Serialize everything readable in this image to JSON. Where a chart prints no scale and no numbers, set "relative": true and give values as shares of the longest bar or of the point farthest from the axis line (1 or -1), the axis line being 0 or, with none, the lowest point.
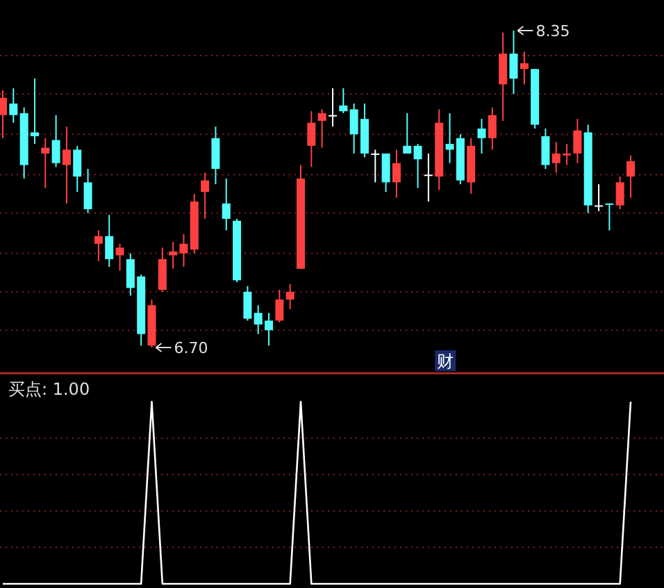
{
  "chart_data": [
    {
      "type": "candlestick",
      "categories": [
        null,
        null,
        null,
        null,
        null,
        null,
        null,
        null,
        null,
        null,
        null,
        null,
        null,
        null,
        null,
        null,
        null,
        null,
        null,
        null,
        null,
        null,
        null,
        null,
        null,
        null,
        null,
        null,
        null,
        null,
        null,
        null,
        null,
        null,
        null,
        null,
        null,
        null,
        null,
        null,
        null,
        null,
        null,
        null,
        null,
        null,
        null,
        null,
        null,
        null,
        null,
        null,
        null,
        null,
        null,
        null,
        null,
        null,
        null,
        null
      ],
      "ohlc": [
        [
          7.91,
          8.04,
          7.79,
          8.0
        ],
        [
          7.97,
          8.05,
          7.87,
          7.91
        ],
        [
          7.92,
          7.95,
          7.58,
          7.65
        ],
        [
          7.82,
          8.1,
          7.76,
          7.8
        ],
        [
          7.71,
          7.79,
          7.53,
          7.74
        ],
        [
          7.78,
          7.91,
          7.64,
          7.66
        ],
        [
          7.65,
          7.85,
          7.45,
          7.73
        ],
        [
          7.73,
          7.75,
          7.51,
          7.59
        ],
        [
          7.56,
          7.63,
          7.4,
          7.42
        ],
        [
          7.24,
          7.31,
          7.15,
          7.28
        ],
        [
          7.28,
          7.39,
          7.12,
          7.16
        ],
        [
          7.18,
          7.24,
          7.1,
          7.22
        ],
        [
          7.16,
          7.19,
          6.97,
          7.01
        ],
        [
          7.07,
          7.08,
          6.71,
          6.77
        ],
        [
          6.71,
          6.95,
          6.7,
          6.92
        ],
        [
          7.0,
          7.22,
          6.99,
          7.16
        ],
        [
          7.18,
          7.25,
          7.11,
          7.2
        ],
        [
          7.19,
          7.29,
          7.12,
          7.24
        ],
        [
          7.21,
          7.5,
          7.19,
          7.46
        ],
        [
          7.51,
          7.61,
          7.37,
          7.57
        ],
        [
          7.79,
          7.85,
          7.55,
          7.63
        ],
        [
          7.45,
          7.58,
          7.31,
          7.37
        ],
        [
          7.36,
          7.37,
          7.04,
          7.05
        ],
        [
          6.99,
          7.02,
          6.84,
          6.85
        ],
        [
          6.88,
          6.92,
          6.77,
          6.82
        ],
        [
          6.84,
          6.88,
          6.71,
          6.79
        ],
        [
          6.84,
          7.0,
          6.83,
          6.95
        ],
        [
          6.95,
          7.03,
          6.9,
          6.99
        ],
        [
          7.11,
          7.65,
          7.11,
          7.58
        ],
        [
          7.75,
          7.93,
          7.64,
          7.87
        ],
        [
          7.88,
          7.94,
          7.74,
          7.92
        ],
        [
          7.91,
          8.05,
          7.85,
          7.91
        ],
        [
          7.96,
          8.05,
          7.92,
          7.93
        ],
        [
          7.94,
          7.97,
          7.71,
          7.81
        ],
        [
          7.89,
          7.97,
          7.69,
          7.71
        ],
        [
          7.71,
          7.73,
          7.56,
          7.71
        ],
        [
          7.71,
          7.71,
          7.51,
          7.56
        ],
        [
          7.56,
          7.73,
          7.48,
          7.66
        ],
        [
          7.75,
          7.92,
          7.71,
          7.71
        ],
        [
          7.75,
          7.76,
          7.53,
          7.68
        ],
        [
          7.6,
          7.71,
          7.46,
          7.6
        ],
        [
          7.59,
          7.94,
          7.52,
          7.87
        ],
        [
          7.76,
          7.92,
          7.66,
          7.73
        ],
        [
          7.79,
          7.81,
          7.55,
          7.57
        ],
        [
          7.56,
          7.79,
          7.5,
          7.75
        ],
        [
          7.84,
          7.89,
          7.71,
          7.79
        ],
        [
          7.79,
          7.95,
          7.73,
          7.91
        ],
        [
          8.07,
          8.34,
          7.88,
          8.23
        ],
        [
          8.23,
          8.35,
          8.02,
          8.1
        ],
        [
          8.15,
          8.24,
          8.07,
          8.18
        ],
        [
          8.15,
          8.15,
          7.84,
          7.86
        ],
        [
          7.8,
          7.84,
          7.63,
          7.65
        ],
        [
          7.66,
          7.77,
          7.61,
          7.71
        ],
        [
          7.7,
          7.76,
          7.65,
          7.71
        ],
        [
          7.71,
          7.89,
          7.66,
          7.83
        ],
        [
          7.82,
          7.86,
          7.4,
          7.44
        ],
        [
          7.44,
          7.55,
          7.41,
          7.44
        ],
        [
          7.45,
          7.45,
          7.31,
          7.45
        ],
        [
          7.44,
          7.59,
          7.42,
          7.56
        ],
        [
          7.59,
          7.7,
          7.48,
          7.67
        ]
      ],
      "colors": [
        "#ff4040",
        "#54fcfc",
        "#54fcfc",
        "#54fcfc",
        "#ff4040",
        "#54fcfc",
        "#ff4040",
        "#54fcfc",
        "#54fcfc",
        "#ff4040",
        "#54fcfc",
        "#ff4040",
        "#54fcfc",
        "#54fcfc",
        "#ff4040",
        "#ff4040",
        "#ff4040",
        "#ff4040",
        "#ff4040",
        "#ff4040",
        "#54fcfc",
        "#54fcfc",
        "#54fcfc",
        "#54fcfc",
        "#54fcfc",
        "#54fcfc",
        "#ff4040",
        "#ff4040",
        "#ff4040",
        "#ff4040",
        "#ff4040",
        "#ffffff",
        "#54fcfc",
        "#54fcfc",
        "#54fcfc",
        "#ffffff",
        "#54fcfc",
        "#ff4040",
        "#54fcfc",
        "#54fcfc",
        "#ffffff",
        "#ff4040",
        "#54fcfc",
        "#54fcfc",
        "#ff4040",
        "#54fcfc",
        "#ff4040",
        "#ff4040",
        "#54fcfc",
        "#ff4040",
        "#54fcfc",
        "#54fcfc",
        "#ff4040",
        "#ff4040",
        "#ff4040",
        "#54fcfc",
        "#ffffff",
        "#54fcfc",
        "#ff4040",
        "#ff4040"
      ],
      "ref_lines": [
        {
          "axis": "y",
          "value": 8.22,
          "color": "#8a2020",
          "line_style": "dotted"
        },
        {
          "axis": "y",
          "value": 8.02,
          "color": "#8a2020",
          "line_style": "dotted"
        },
        {
          "axis": "y",
          "value": 7.81,
          "color": "#8a2020",
          "line_style": "dotted"
        },
        {
          "axis": "y",
          "value": 7.6,
          "color": "#8a2020",
          "line_style": "dotted"
        },
        {
          "axis": "y",
          "value": 7.4,
          "color": "#8a2020",
          "line_style": "dotted"
        },
        {
          "axis": "y",
          "value": 7.19,
          "color": "#8a2020",
          "line_style": "dotted"
        },
        {
          "axis": "y",
          "value": 6.99,
          "color": "#8a2020",
          "line_style": "dotted"
        },
        {
          "axis": "y",
          "value": 6.79,
          "color": "#8a2020",
          "line_style": "dotted"
        }
      ],
      "annotations": [
        "8.35",
        "6.70",
        "财"
      ]
    },
    {
      "type": "line",
      "title": "买点: 1.00",
      "categories": [
        null,
        null,
        null,
        null,
        null,
        null,
        null,
        null,
        null,
        null,
        null,
        null,
        null,
        null,
        null,
        null,
        null,
        null,
        null,
        null,
        null,
        null,
        null,
        null,
        null,
        null,
        null,
        null,
        null,
        null,
        null,
        null,
        null,
        null,
        null,
        null,
        null,
        null,
        null,
        null,
        null,
        null,
        null,
        null,
        null,
        null,
        null,
        null,
        null,
        null,
        null,
        null,
        null,
        null,
        null,
        null,
        null,
        null,
        null,
        null
      ],
      "series": [
        {
          "color": "#ffffff",
          "values": [
            0,
            0,
            0,
            0,
            0,
            0,
            0,
            0,
            0,
            0,
            0,
            0,
            0,
            0,
            1,
            0,
            0,
            0,
            0,
            0,
            0,
            0,
            0,
            0,
            0,
            0,
            0,
            0,
            1,
            0,
            0,
            0,
            0,
            0,
            0,
            0,
            0,
            0,
            0,
            0,
            0,
            0,
            0,
            0,
            0,
            0,
            0,
            0,
            0,
            0,
            0,
            0,
            0,
            0,
            0,
            0,
            0,
            0,
            0,
            1
          ]
        }
      ],
      "relative": true,
      "ref_lines": [
        {
          "axis": "y",
          "value": 0.8,
          "color": "#8a2020",
          "line_style": "dotted"
        },
        {
          "axis": "y",
          "value": 0.6,
          "color": "#8a2020",
          "line_style": "dotted"
        },
        {
          "axis": "y",
          "value": 0.4,
          "color": "#8a2020",
          "line_style": "dotted"
        },
        {
          "axis": "y",
          "value": 0.2,
          "color": "#8a2020",
          "line_style": "dotted"
        }
      ]
    }
  ]
}
